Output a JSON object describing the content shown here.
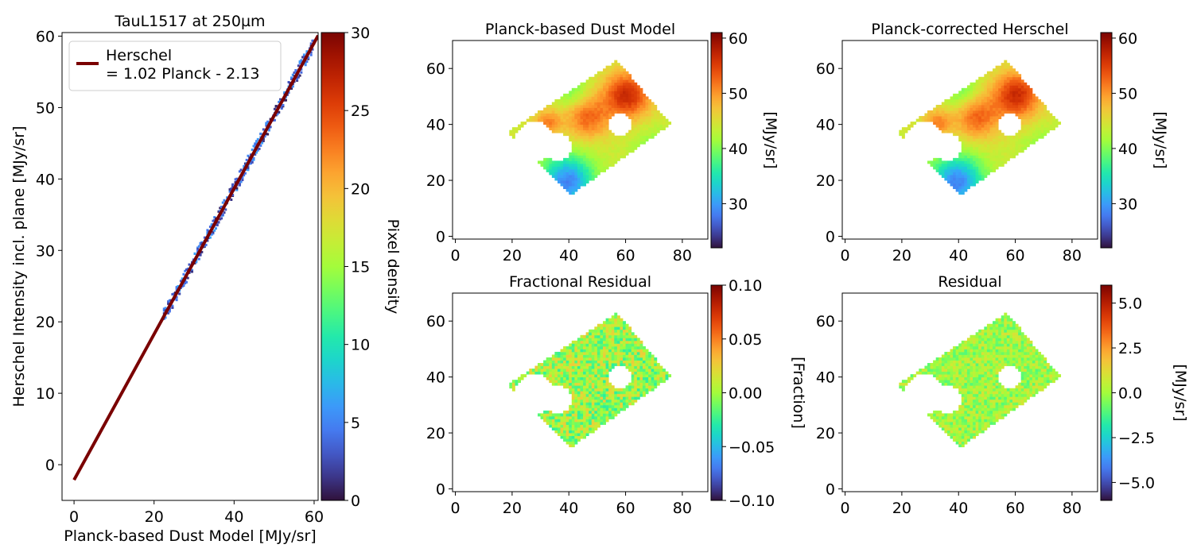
{
  "colors": {
    "turbo": [
      "#30123b",
      "#4145ab",
      "#4675ed",
      "#39a2fc",
      "#1bcfd4",
      "#24eca6",
      "#61fc6c",
      "#a4fc3b",
      "#d1e834",
      "#f3c63a",
      "#fe9b2d",
      "#f36315",
      "#d93806",
      "#b11901",
      "#7a0402"
    ],
    "fit_line": "#7a0000",
    "frame": "#000000",
    "mask_fill": "#ffffff"
  },
  "chart_data": [
    {
      "type": "scatter",
      "subtype": "2d-density",
      "title": "TauL1517 at 250µm",
      "xlabel": "Planck-based Dust Model [MJy/sr]",
      "ylabel": "Herschel Intensity incl. plane [MJy/sr]",
      "xlim": [
        -3,
        61
      ],
      "ylim": [
        -5,
        60.5
      ],
      "xticks": [
        "0",
        "20",
        "40",
        "60"
      ],
      "yticks": [
        "0",
        "10",
        "20",
        "30",
        "40",
        "50",
        "60"
      ],
      "fit": {
        "slope": 1.02,
        "intercept": -2.13,
        "x_range": [
          0,
          61
        ]
      },
      "legend": {
        "position": "top-left",
        "label_line1": "Herschel",
        "label_line2": "= 1.02 Planck - 2.13"
      },
      "density_points_x_range": [
        22.5,
        60
      ],
      "colorbar": {
        "label": "Pixel density",
        "range": [
          0,
          30
        ],
        "ticks": [
          "0",
          "5",
          "10",
          "15",
          "20",
          "25",
          "30"
        ]
      }
    },
    {
      "type": "heatmap",
      "title": "Planck-based Dust Model",
      "xlim": [
        -1,
        89
      ],
      "ylim": [
        -1,
        70
      ],
      "xticks": [
        "0",
        "20",
        "40",
        "60",
        "80"
      ],
      "yticks": [
        "0",
        "20",
        "40",
        "60"
      ],
      "region_corners": [
        [
          18,
          37
        ],
        [
          41,
          15
        ],
        [
          76,
          40
        ],
        [
          57,
          63
        ]
      ],
      "holes": [
        {
          "x": 28,
          "y": 34,
          "r": 7
        },
        {
          "x": 36,
          "y": 32,
          "r": 5
        },
        {
          "x": 58,
          "y": 40,
          "r": 4
        }
      ],
      "value_range": [
        30,
        58
      ],
      "colorbar": {
        "label": "[MJy/sr]",
        "range": [
          22,
          61
        ],
        "ticks": [
          "30",
          "40",
          "50",
          "60"
        ]
      }
    },
    {
      "type": "heatmap",
      "title": "Planck-corrected Herschel",
      "xlim": [
        -1,
        89
      ],
      "ylim": [
        -1,
        70
      ],
      "xticks": [
        "0",
        "20",
        "40",
        "60",
        "80"
      ],
      "yticks": [
        "0",
        "20",
        "40",
        "60"
      ],
      "region_corners": [
        [
          18,
          37
        ],
        [
          41,
          15
        ],
        [
          76,
          40
        ],
        [
          57,
          63
        ]
      ],
      "holes": [
        {
          "x": 28,
          "y": 34,
          "r": 7
        },
        {
          "x": 36,
          "y": 32,
          "r": 5
        },
        {
          "x": 58,
          "y": 40,
          "r": 4
        }
      ],
      "value_range": [
        30,
        58
      ],
      "colorbar": {
        "label": "[MJy/sr]",
        "range": [
          22,
          61
        ],
        "ticks": [
          "30",
          "40",
          "50",
          "60"
        ]
      }
    },
    {
      "type": "heatmap",
      "title": "Fractional Residual",
      "xlim": [
        -1,
        89
      ],
      "ylim": [
        -1,
        70
      ],
      "xticks": [
        "0",
        "20",
        "40",
        "60",
        "80"
      ],
      "yticks": [
        "0",
        "20",
        "40",
        "60"
      ],
      "region_corners": [
        [
          18,
          37
        ],
        [
          41,
          15
        ],
        [
          76,
          40
        ],
        [
          57,
          63
        ]
      ],
      "holes": [
        {
          "x": 28,
          "y": 34,
          "r": 7
        },
        {
          "x": 36,
          "y": 32,
          "r": 5
        },
        {
          "x": 58,
          "y": 40,
          "r": 4
        }
      ],
      "value_range": [
        -0.03,
        0.03
      ],
      "colorbar": {
        "label": "[Fraction]",
        "range": [
          -0.1,
          0.1
        ],
        "ticks": [
          "−0.10",
          "−0.05",
          "0.00",
          "0.05",
          "0.10"
        ]
      }
    },
    {
      "type": "heatmap",
      "title": "Residual",
      "xlim": [
        -1,
        89
      ],
      "ylim": [
        -1,
        70
      ],
      "xticks": [
        "0",
        "20",
        "40",
        "60",
        "80"
      ],
      "yticks": [
        "0",
        "20",
        "40",
        "60"
      ],
      "region_corners": [
        [
          18,
          37
        ],
        [
          41,
          15
        ],
        [
          76,
          40
        ],
        [
          57,
          63
        ]
      ],
      "holes": [
        {
          "x": 28,
          "y": 34,
          "r": 7
        },
        {
          "x": 36,
          "y": 32,
          "r": 5
        },
        {
          "x": 58,
          "y": 40,
          "r": 4
        }
      ],
      "value_range": [
        -1.2,
        1.2
      ],
      "colorbar": {
        "label": "[MJy/sr]",
        "range": [
          -6,
          6
        ],
        "ticks": [
          "−5.0",
          "−2.5",
          "0.0",
          "2.5",
          "5.0"
        ]
      }
    }
  ]
}
